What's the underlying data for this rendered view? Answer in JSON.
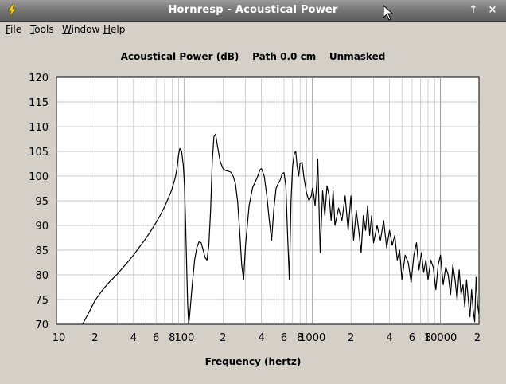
{
  "window": {
    "title": "Hornresp - Acoustical Power",
    "maximize_label": "↑",
    "close_label": "×"
  },
  "menu": [
    {
      "label": "File",
      "mnemonic": "F",
      "rest": "ile"
    },
    {
      "label": "Tools",
      "mnemonic": "T",
      "rest": "ools"
    },
    {
      "label": "Window",
      "mnemonic": "W",
      "rest": "indow"
    },
    {
      "label": "Help",
      "mnemonic": "H",
      "rest": "elp"
    }
  ],
  "icons": {
    "app": "lightning-icon",
    "cursor": "mouse-pointer-icon"
  },
  "colors": {
    "background": "#d4d0c8",
    "plot_bg": "#ffffff",
    "grid": "#b4b4b4",
    "trace": "#000000",
    "accent": "#f2d21b"
  },
  "chart_data": {
    "type": "line",
    "title": "Acoustical Power (dB)    Path 0.0 cm    Unmasked",
    "xlabel": "Frequency (hertz)",
    "ylabel": "",
    "xscale": "log",
    "xlim": [
      10,
      20000
    ],
    "ylim": [
      70,
      120
    ],
    "grid": true,
    "y_ticks": [
      "120",
      "115",
      "110",
      "105",
      "100",
      "95",
      "90",
      "85",
      "80",
      "75",
      "70"
    ],
    "x_ticks": [
      {
        "value": 10,
        "label": "10"
      },
      {
        "value": 20,
        "label": "2"
      },
      {
        "value": 40,
        "label": "4"
      },
      {
        "value": 60,
        "label": "6"
      },
      {
        "value": 80,
        "label": "8"
      },
      {
        "value": 100,
        "label": "100"
      },
      {
        "value": 200,
        "label": "2"
      },
      {
        "value": 400,
        "label": "4"
      },
      {
        "value": 600,
        "label": "6"
      },
      {
        "value": 800,
        "label": "8"
      },
      {
        "value": 1000,
        "label": "1000"
      },
      {
        "value": 2000,
        "label": "2"
      },
      {
        "value": 4000,
        "label": "4"
      },
      {
        "value": 6000,
        "label": "6"
      },
      {
        "value": 8000,
        "label": "8"
      },
      {
        "value": 10000,
        "label": "10000"
      },
      {
        "value": 20000,
        "label": "2"
      }
    ],
    "series": [
      {
        "x": [
          16,
          18,
          20,
          23,
          26,
          30,
          35,
          40,
          45,
          50,
          55,
          60,
          65,
          70,
          75,
          80,
          85,
          88,
          90,
          92,
          95,
          98,
          100,
          102,
          104,
          106,
          108,
          110,
          115,
          120,
          125,
          130,
          135,
          140,
          145,
          150,
          155,
          160,
          165,
          170,
          175,
          180,
          190,
          200,
          210,
          220,
          230,
          240,
          250,
          260,
          270,
          280,
          290,
          300,
          320,
          340,
          360,
          370,
          380,
          390,
          400,
          420,
          440,
          460,
          480,
          500,
          520,
          540,
          560,
          580,
          600,
          620,
          640,
          660,
          680,
          700,
          720,
          740,
          760,
          780,
          800,
          830,
          860,
          900,
          940,
          980,
          1000,
          1020,
          1050,
          1080,
          1100,
          1150,
          1200,
          1250,
          1300,
          1350,
          1400,
          1450,
          1500,
          1600,
          1700,
          1800,
          1900,
          2000,
          2100,
          2200,
          2300,
          2400,
          2500,
          2600,
          2700,
          2800,
          2900,
          3000,
          3200,
          3400,
          3600,
          3800,
          4000,
          4200,
          4400,
          4600,
          4800,
          5000,
          5300,
          5600,
          5900,
          6200,
          6500,
          6800,
          7100,
          7400,
          7700,
          8000,
          8400,
          8800,
          9200,
          9600,
          10000,
          10500,
          11000,
          11500,
          12000,
          12500,
          13000,
          13500,
          14000,
          14500,
          15000,
          15500,
          16000,
          16500,
          17000,
          17500,
          18000,
          18500,
          19000,
          19500,
          20000
        ],
        "y": [
          70,
          72.5,
          74.8,
          77,
          78.6,
          80.2,
          82.2,
          84,
          85.8,
          87.4,
          89,
          90.6,
          92.2,
          93.8,
          95.6,
          97.4,
          99.8,
          102,
          104.4,
          105.6,
          105,
          102.2,
          98,
          91,
          82,
          74,
          70,
          72,
          78,
          83,
          85.5,
          86.7,
          86.5,
          85,
          83.5,
          83,
          86,
          93,
          103,
          108,
          108.5,
          106.5,
          103,
          101.5,
          101.1,
          101,
          100.8,
          100,
          98.5,
          95,
          89,
          82,
          79,
          86,
          94,
          97.6,
          99,
          99.7,
          100.5,
          101.3,
          101.5,
          100,
          96,
          91,
          87,
          93.5,
          97.5,
          98.5,
          99.2,
          100.5,
          100.7,
          98,
          88,
          79,
          95,
          102,
          104.5,
          105,
          102,
          100,
          102.5,
          102.8,
          99.5,
          96.5,
          95,
          96,
          97.5,
          96.5,
          94,
          98.5,
          103.5,
          84.5,
          97,
          92,
          98,
          96,
          91,
          97,
          90,
          93.5,
          91,
          96,
          89,
          96,
          87,
          93,
          89,
          84.5,
          92,
          89,
          94,
          88,
          92,
          86.5,
          90,
          87,
          91,
          85.5,
          89,
          86,
          88,
          83,
          85,
          79,
          84,
          82.5,
          78.5,
          84,
          86.5,
          81,
          84.5,
          80.5,
          83,
          79,
          83,
          81.5,
          77,
          82,
          84,
          78,
          81.5,
          80,
          76,
          82,
          79,
          75,
          81,
          76,
          78,
          73.5,
          79,
          75,
          71.5,
          77,
          73,
          70.5,
          79.5,
          74,
          72
        ]
      }
    ]
  }
}
